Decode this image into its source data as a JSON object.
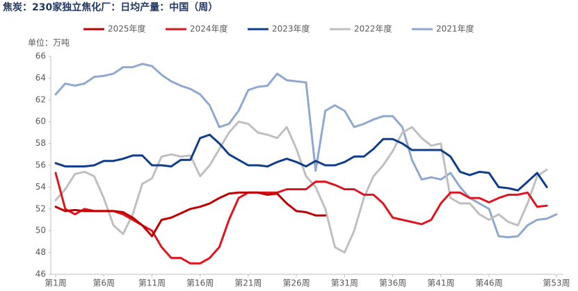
{
  "chart_data": {
    "type": "line",
    "title": "焦炭：230家独立焦化厂：日均产量：中国（周）",
    "y_label": "单位：万吨",
    "categories": [
      "第1周",
      null,
      null,
      null,
      null,
      "第6周",
      null,
      null,
      null,
      null,
      "第11周",
      null,
      null,
      null,
      null,
      "第16周",
      null,
      null,
      null,
      null,
      "第21周",
      null,
      null,
      null,
      null,
      "第26周",
      null,
      null,
      null,
      null,
      "第31周",
      null,
      null,
      null,
      null,
      "第36周",
      null,
      null,
      null,
      null,
      "第41周",
      null,
      null,
      null,
      null,
      "第46周",
      null,
      null,
      null,
      null,
      null,
      null,
      "第53周"
    ],
    "ylim": [
      46,
      66
    ],
    "yticks": [
      46,
      48,
      50,
      52,
      54,
      56,
      58,
      60,
      62,
      64,
      66
    ],
    "legend": "top",
    "series": [
      {
        "name": "2025年度",
        "color": "#c00000",
        "values": [
          52.2,
          51.8,
          51.9,
          51.8,
          51.8,
          51.8,
          51.8,
          51.7,
          51.2,
          50.5,
          49.5,
          51.0,
          51.2,
          51.6,
          52.0,
          52.2,
          52.5,
          53.0,
          53.4,
          53.5,
          53.5,
          53.5,
          53.3,
          53.4,
          52.5,
          51.8,
          51.7,
          51.4,
          51.4,
          null,
          null,
          null,
          null,
          null,
          null,
          null,
          null,
          null,
          null,
          null,
          null,
          null,
          null,
          null,
          null,
          null,
          null,
          null,
          null,
          null,
          null,
          null,
          null
        ]
      },
      {
        "name": "2024年度",
        "color": "#e0141e",
        "values": [
          55.3,
          52.0,
          51.5,
          52.0,
          51.8,
          51.8,
          51.8,
          51.5,
          51.0,
          50.5,
          50.0,
          48.5,
          47.5,
          47.5,
          47.0,
          47.0,
          47.5,
          48.5,
          51.0,
          53.0,
          53.5,
          53.5,
          53.5,
          53.5,
          53.8,
          53.8,
          53.8,
          54.5,
          54.5,
          54.2,
          53.8,
          53.8,
          53.3,
          53.3,
          52.5,
          51.2,
          51.0,
          50.8,
          50.6,
          51.0,
          52.5,
          53.5,
          53.5,
          53.0,
          53.0,
          52.6,
          53.0,
          53.3,
          53.3,
          53.5,
          52.2,
          52.3,
          null
        ]
      },
      {
        "name": "2023年度",
        "color": "#0f3c8c",
        "values": [
          56.2,
          55.9,
          55.9,
          55.9,
          56.0,
          56.4,
          56.4,
          56.6,
          56.9,
          56.9,
          56.0,
          56.0,
          55.9,
          56.5,
          56.5,
          58.5,
          58.8,
          58.0,
          57.0,
          56.5,
          56.0,
          56.0,
          55.9,
          56.3,
          56.6,
          56.3,
          55.9,
          56.4,
          56.0,
          56.0,
          56.3,
          56.8,
          56.8,
          57.5,
          58.4,
          58.4,
          58.0,
          57.4,
          57.4,
          57.4,
          57.4,
          56.8,
          55.4,
          55.1,
          55.4,
          55.3,
          54.0,
          53.9,
          53.7,
          54.5,
          55.3,
          54.0,
          null
        ]
      },
      {
        "name": "2022年度",
        "color": "#bfbfbf",
        "values": [
          52.8,
          53.8,
          55.2,
          55.4,
          55.0,
          53.0,
          50.5,
          49.7,
          51.5,
          54.3,
          54.8,
          56.8,
          57.0,
          56.8,
          56.9,
          55.0,
          56.0,
          57.5,
          59.0,
          60.0,
          59.8,
          59.0,
          58.8,
          58.5,
          59.5,
          57.5,
          55.0,
          54.0,
          52.0,
          48.5,
          48.0,
          50.0,
          53.0,
          55.0,
          56.0,
          57.3,
          59.0,
          59.5,
          58.5,
          57.8,
          58.0,
          53.0,
          52.5,
          52.5,
          51.5,
          51.0,
          51.5,
          50.8,
          50.5,
          52.5,
          55.0,
          55.6,
          null
        ]
      },
      {
        "name": "2021年度",
        "color": "#8fa8d0",
        "values": [
          62.5,
          63.5,
          63.3,
          63.5,
          64.1,
          64.2,
          64.4,
          65.0,
          65.0,
          65.3,
          65.1,
          64.3,
          63.7,
          63.3,
          63.0,
          62.5,
          61.5,
          59.5,
          59.8,
          61.0,
          62.9,
          63.2,
          63.3,
          64.4,
          63.8,
          63.7,
          63.6,
          55.5,
          61.0,
          61.5,
          61.0,
          59.5,
          59.8,
          60.2,
          60.5,
          60.5,
          59.5,
          56.5,
          54.7,
          54.9,
          54.7,
          55.3,
          54.0,
          53.0,
          52.5,
          52.0,
          49.5,
          49.4,
          49.5,
          50.5,
          51.0,
          51.1,
          51.5
        ]
      }
    ]
  }
}
